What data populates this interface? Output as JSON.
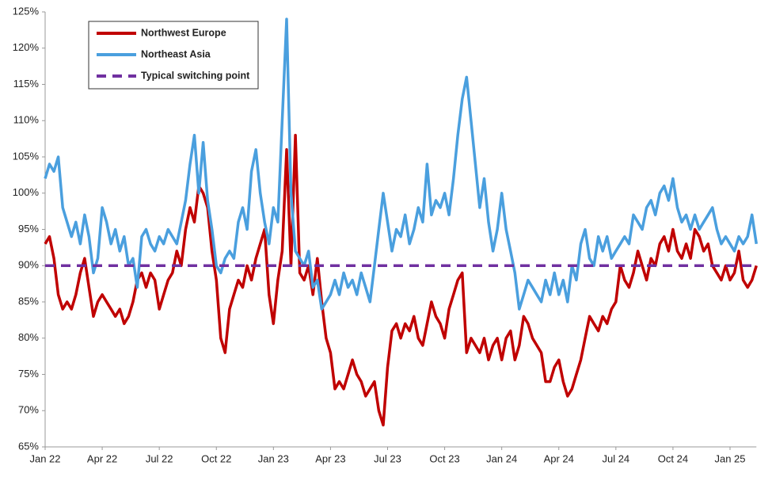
{
  "chart_data": {
    "type": "line",
    "categories": [
      "Jan 22",
      null,
      null,
      null,
      null,
      null,
      null,
      null,
      null,
      null,
      null,
      null,
      null,
      "Apr 22",
      null,
      null,
      null,
      null,
      null,
      null,
      null,
      null,
      null,
      null,
      null,
      null,
      "Jul 22",
      null,
      null,
      null,
      null,
      null,
      null,
      null,
      null,
      null,
      null,
      null,
      null,
      "Oct 22",
      null,
      null,
      null,
      null,
      null,
      null,
      null,
      null,
      null,
      null,
      null,
      null,
      "Jan 23",
      null,
      null,
      null,
      null,
      null,
      null,
      null,
      null,
      null,
      null,
      null,
      null,
      "Apr 23",
      null,
      null,
      null,
      null,
      null,
      null,
      null,
      null,
      null,
      null,
      null,
      null,
      "Jul 23",
      null,
      null,
      null,
      null,
      null,
      null,
      null,
      null,
      null,
      null,
      null,
      null,
      "Oct 23",
      null,
      null,
      null,
      null,
      null,
      null,
      null,
      null,
      null,
      null,
      null,
      null,
      "Jan 24",
      null,
      null,
      null,
      null,
      null,
      null,
      null,
      null,
      null,
      null,
      null,
      null,
      "Apr 24",
      null,
      null,
      null,
      null,
      null,
      null,
      null,
      null,
      null,
      null,
      null,
      null,
      "Jul 24",
      null,
      null,
      null,
      null,
      null,
      null,
      null,
      null,
      null,
      null,
      null,
      null,
      "Oct 24",
      null,
      null,
      null,
      null,
      null,
      null,
      null,
      null,
      null,
      null,
      null,
      null,
      "Jan 25",
      null,
      null,
      null,
      null,
      null,
      null
    ],
    "series": [
      {
        "name": "Northwest Europe",
        "color": "#c00000",
        "values": [
          93,
          94,
          91,
          86,
          84,
          85,
          84,
          86,
          89,
          91,
          87,
          83,
          85,
          86,
          85,
          84,
          83,
          84,
          82,
          83,
          85,
          88,
          89,
          87,
          89,
          88,
          84,
          86,
          88,
          89,
          92,
          90,
          95,
          98,
          96,
          101,
          100,
          98,
          92,
          88,
          80,
          78,
          84,
          86,
          88,
          87,
          90,
          88,
          91,
          93,
          95,
          86,
          82,
          88,
          92,
          106,
          90,
          108,
          89,
          88,
          90,
          86,
          91,
          85,
          80,
          78,
          73,
          74,
          73,
          75,
          77,
          75,
          74,
          72,
          73,
          74,
          70,
          68,
          76,
          81,
          82,
          80,
          82,
          81,
          83,
          80,
          79,
          82,
          85,
          83,
          82,
          80,
          84,
          86,
          88,
          89,
          78,
          80,
          79,
          78,
          80,
          77,
          79,
          80,
          77,
          80,
          81,
          77,
          79,
          83,
          82,
          80,
          79,
          78,
          74,
          74,
          76,
          77,
          74,
          72,
          73,
          75,
          77,
          80,
          83,
          82,
          81,
          83,
          82,
          84,
          85,
          90,
          88,
          87,
          89,
          92,
          90,
          88,
          91,
          90,
          93,
          94,
          92,
          95,
          92,
          91,
          93,
          91,
          95,
          94,
          92,
          93,
          90,
          89,
          88,
          90,
          88,
          89,
          92,
          88,
          87,
          88,
          90
        ]
      },
      {
        "name": "Northeast Asia",
        "color": "#4a9fde",
        "values": [
          102,
          104,
          103,
          105,
          98,
          96,
          94,
          96,
          93,
          97,
          94,
          89,
          91,
          98,
          96,
          93,
          95,
          92,
          94,
          90,
          91,
          87,
          94,
          95,
          93,
          92,
          94,
          93,
          95,
          94,
          93,
          96,
          99,
          104,
          108,
          100,
          107,
          99,
          95,
          90,
          89,
          91,
          92,
          91,
          96,
          98,
          95,
          103,
          106,
          100,
          96,
          93,
          98,
          96,
          110,
          124,
          100,
          92,
          91,
          90,
          92,
          87,
          88,
          84,
          85,
          86,
          88,
          86,
          89,
          87,
          88,
          86,
          89,
          87,
          85,
          90,
          95,
          100,
          96,
          92,
          95,
          94,
          97,
          93,
          95,
          98,
          96,
          104,
          97,
          99,
          98,
          100,
          97,
          102,
          108,
          113,
          116,
          110,
          104,
          98,
          102,
          96,
          92,
          95,
          100,
          95,
          92,
          89,
          84,
          86,
          88,
          87,
          86,
          85,
          88,
          86,
          89,
          86,
          88,
          85,
          90,
          88,
          93,
          95,
          91,
          90,
          94,
          92,
          94,
          91,
          92,
          93,
          94,
          93,
          97,
          96,
          95,
          98,
          99,
          97,
          100,
          101,
          99,
          102,
          98,
          96,
          97,
          95,
          97,
          95,
          96,
          97,
          98,
          95,
          93,
          94,
          93,
          92,
          94,
          93,
          94,
          97,
          93
        ]
      }
    ],
    "reference_lines": [
      {
        "name": "Typical switching point",
        "value": 90,
        "color": "#7030a0",
        "dashed": true
      }
    ],
    "ylim": [
      65,
      125
    ],
    "yticks": [
      {
        "value": 65,
        "label": "65%"
      },
      {
        "value": 70,
        "label": "70%"
      },
      {
        "value": 75,
        "label": "75%"
      },
      {
        "value": 80,
        "label": "80%"
      },
      {
        "value": 85,
        "label": "85%"
      },
      {
        "value": 90,
        "label": "90%"
      },
      {
        "value": 95,
        "label": "95%"
      },
      {
        "value": 100,
        "label": "100%"
      },
      {
        "value": 105,
        "label": "105%"
      },
      {
        "value": 110,
        "label": "110%"
      },
      {
        "value": 115,
        "label": "115%"
      },
      {
        "value": 120,
        "label": "120%"
      },
      {
        "value": 125,
        "label": "125%"
      }
    ],
    "grid": false,
    "legend": "upper left"
  }
}
